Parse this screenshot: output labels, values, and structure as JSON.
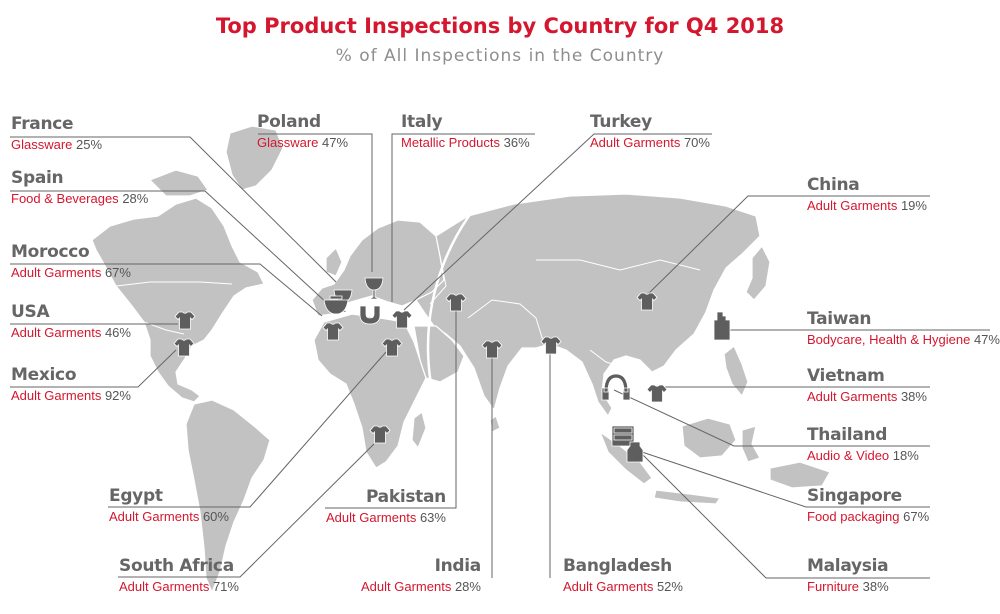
{
  "header": {
    "title": "Top Product Inspections by Country for Q4 2018",
    "subtitle": "% of All Inspections in the Country"
  },
  "colors": {
    "accent": "#d4172e",
    "country_name": "#666666",
    "land": "#c2c2c2",
    "border": "#ffffff",
    "leader_line": "#666666",
    "marker": "#5e5e5e"
  },
  "countries": [
    {
      "id": "france",
      "name": "France",
      "product": "Glassware",
      "percent": "25%",
      "icon": "glass-icon"
    },
    {
      "id": "spain",
      "name": "Spain",
      "product": "Food & Beverages",
      "percent": "28%",
      "icon": "food-bowl-icon"
    },
    {
      "id": "morocco",
      "name": "Morocco",
      "product": "Adult Garments",
      "percent": "67%",
      "icon": "tshirt-icon"
    },
    {
      "id": "usa",
      "name": "USA",
      "product": "Adult Garments",
      "percent": "46%",
      "icon": "tshirt-icon"
    },
    {
      "id": "mexico",
      "name": "Mexico",
      "product": "Adult Garments",
      "percent": "92%",
      "icon": "tshirt-icon"
    },
    {
      "id": "egypt",
      "name": "Egypt",
      "product": "Adult Garments",
      "percent": "60%",
      "icon": "tshirt-icon"
    },
    {
      "id": "south-africa",
      "name": "South Africa",
      "product": "Adult Garments",
      "percent": "71%",
      "icon": "tshirt-icon"
    },
    {
      "id": "poland",
      "name": "Poland",
      "product": "Glassware",
      "percent": "47%",
      "icon": "glass-icon"
    },
    {
      "id": "italy",
      "name": "Italy",
      "product": "Metallic Products",
      "percent": "36%",
      "icon": "magnet-icon"
    },
    {
      "id": "turkey",
      "name": "Turkey",
      "product": "Adult Garments",
      "percent": "70%",
      "icon": "tshirt-icon"
    },
    {
      "id": "pakistan",
      "name": "Pakistan",
      "product": "Adult Garments",
      "percent": "63%",
      "icon": "tshirt-icon"
    },
    {
      "id": "india",
      "name": "India",
      "product": "Adult Garments",
      "percent": "28%",
      "icon": "tshirt-icon"
    },
    {
      "id": "bangladesh",
      "name": "Bangladesh",
      "product": "Adult Garments",
      "percent": "52%",
      "icon": "tshirt-icon"
    },
    {
      "id": "china",
      "name": "China",
      "product": "Adult Garments",
      "percent": "19%",
      "icon": "tshirt-icon"
    },
    {
      "id": "taiwan",
      "name": "Taiwan",
      "product": "Bodycare, Health & Hygiene",
      "percent": "47%",
      "icon": "lotion-bottle-icon"
    },
    {
      "id": "vietnam",
      "name": "Vietnam",
      "product": "Adult Garments",
      "percent": "38%",
      "icon": "tshirt-icon"
    },
    {
      "id": "thailand",
      "name": "Thailand",
      "product": "Audio & Video",
      "percent": "18%",
      "icon": "headphones-icon"
    },
    {
      "id": "singapore",
      "name": "Singapore",
      "product": "Food packaging",
      "percent": "67%",
      "icon": "jar-icon"
    },
    {
      "id": "malaysia",
      "name": "Malaysia",
      "product": "Furniture",
      "percent": "38%",
      "icon": "drawers-icon"
    }
  ]
}
